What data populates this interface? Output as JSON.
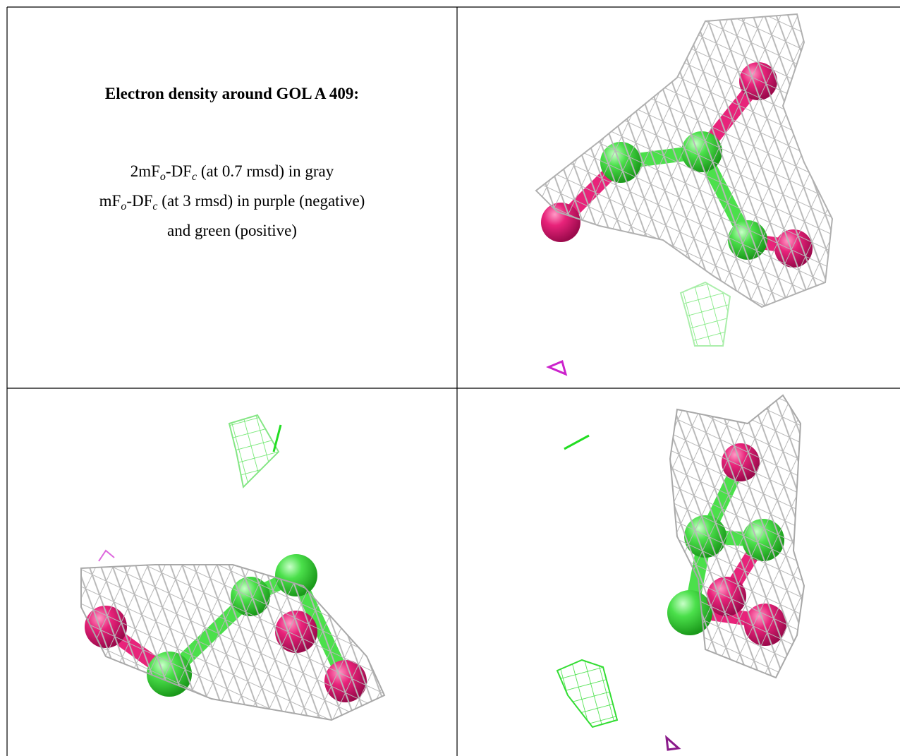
{
  "header": {
    "title": "Electron density around GOL A 409:"
  },
  "legend_lines": [
    [
      "2mF",
      "o",
      "-DF",
      "c",
      " (at 0.7 rmsd) in gray"
    ],
    [
      "mF",
      "o",
      "-DF",
      "c",
      " (at 3 rmsd) in purple (negative)"
    ],
    [
      "and green (positive)"
    ]
  ]
}
